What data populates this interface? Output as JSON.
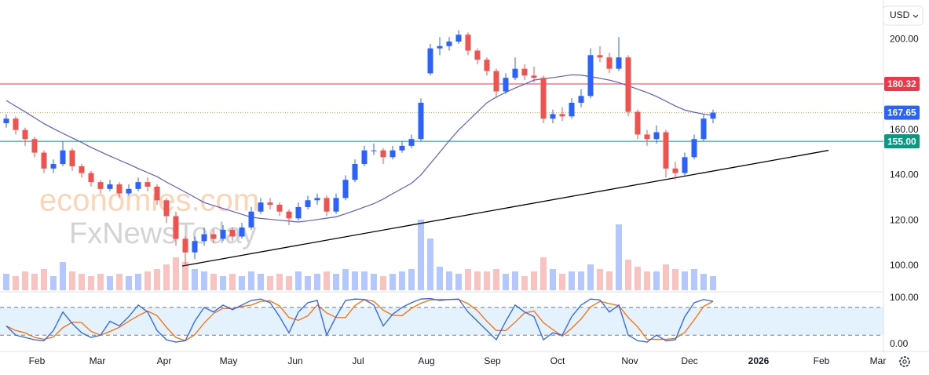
{
  "chart_data": {
    "type": "candlestick",
    "currency": "USD",
    "watermark": [
      "economies.com",
      "FxNewsToday"
    ],
    "x_labels": [
      "Feb",
      "Mar",
      "Apr",
      "May",
      "Jun",
      "Jul",
      "Aug",
      "Sep",
      "Oct",
      "Nov",
      "Dec",
      "2026",
      "Feb",
      "Mar"
    ],
    "ylim": [
      89.3,
      215.6
    ],
    "yticks": [
      {
        "value": 100,
        "label": "100.00"
      },
      {
        "value": 120,
        "label": "120.00"
      },
      {
        "value": 140,
        "label": "140.00"
      },
      {
        "value": 160,
        "label": "160.00"
      },
      {
        "value": 200,
        "label": "200.00"
      }
    ],
    "up_color": "#2962ff",
    "down_color": "#ef5350",
    "open": [
      163,
      165,
      160,
      156,
      150,
      143,
      145,
      151,
      144,
      141,
      137,
      134,
      136,
      132,
      134,
      137,
      135,
      129,
      122,
      112,
      106,
      111,
      114,
      112,
      116,
      113,
      117,
      124,
      128,
      127,
      124,
      121,
      126,
      129,
      130,
      124,
      130,
      138,
      145,
      151,
      151,
      148,
      151,
      153,
      156,
      185,
      196,
      197,
      199,
      202,
      195,
      191,
      186,
      177,
      183,
      187,
      184,
      183,
      165,
      167,
      166,
      172,
      175,
      193,
      192,
      187,
      192,
      168,
      158,
      156,
      159,
      143,
      141,
      148,
      156,
      165
    ],
    "high": [
      167,
      166,
      161,
      157,
      151,
      147,
      155,
      152,
      145,
      142,
      138,
      138,
      137,
      136,
      139,
      139,
      136,
      130,
      124,
      113,
      113,
      117,
      116,
      118,
      117,
      119,
      126,
      130,
      130,
      128,
      125,
      128,
      131,
      132,
      131,
      132,
      140,
      147,
      153,
      154,
      152,
      153,
      155,
      158,
      174,
      198,
      201,
      201,
      204,
      203,
      196,
      192,
      187,
      185,
      192,
      189,
      188,
      184,
      169,
      170,
      174,
      178,
      196,
      197,
      194,
      201,
      193,
      169,
      160,
      162,
      160,
      146,
      150,
      158,
      167,
      169
    ],
    "low": [
      161,
      158,
      153,
      148,
      141,
      141,
      144,
      142,
      139,
      135,
      132,
      133,
      130,
      131,
      133,
      133,
      127,
      119,
      109,
      100,
      103,
      109,
      110,
      111,
      111,
      112,
      116,
      123,
      125,
      122,
      118,
      120,
      125,
      127,
      122,
      123,
      129,
      137,
      144,
      149,
      145,
      147,
      150,
      152,
      155,
      184,
      193,
      195,
      198,
      193,
      189,
      184,
      174,
      176,
      182,
      182,
      181,
      163,
      163,
      164,
      165,
      170,
      174,
      190,
      185,
      186,
      166,
      156,
      153,
      154,
      139,
      138,
      140,
      147,
      155,
      163
    ],
    "close": [
      165,
      160,
      156,
      150,
      143,
      145,
      151,
      144,
      141,
      137,
      134,
      136,
      132,
      134,
      137,
      135,
      129,
      122,
      112,
      106,
      111,
      114,
      112,
      116,
      113,
      117,
      124,
      128,
      127,
      124,
      121,
      126,
      129,
      130,
      124,
      130,
      138,
      145,
      151,
      151,
      148,
      151,
      153,
      156,
      172,
      196,
      197,
      199,
      202,
      195,
      191,
      186,
      177,
      183,
      187,
      184,
      183,
      165,
      167,
      166,
      172,
      175,
      193,
      192,
      187,
      192,
      168,
      158,
      156,
      159,
      143,
      141,
      148,
      156,
      165,
      167.65
    ],
    "volume": [
      7,
      6,
      8,
      7,
      9,
      6,
      12,
      8,
      7,
      6,
      7,
      6,
      7,
      6,
      7,
      8,
      9,
      11,
      14,
      12,
      9,
      8,
      7,
      6,
      7,
      6,
      8,
      7,
      6,
      7,
      6,
      8,
      6,
      7,
      8,
      7,
      9,
      8,
      8,
      7,
      6,
      7,
      8,
      9,
      30,
      22,
      10,
      8,
      7,
      9,
      8,
      8,
      9,
      7,
      8,
      6,
      8,
      14,
      9,
      7,
      8,
      8,
      11,
      9,
      8,
      28,
      13,
      10,
      8,
      8,
      11,
      9,
      8,
      9,
      7,
      6
    ],
    "ma": {
      "color": "#5b5bd6",
      "values": [
        173,
        170.5,
        168,
        165.4,
        162.8,
        160.6,
        158.5,
        156.5,
        154.5,
        152.3,
        150.4,
        148.5,
        146.7,
        144.9,
        143,
        141.2,
        139.4,
        137,
        134.8,
        132.6,
        130.3,
        128,
        126.7,
        125.4,
        124.1,
        122.8,
        121.5,
        121,
        120.6,
        120.2,
        119.8,
        119.4,
        119.9,
        120.5,
        121.1,
        121.7,
        123,
        124.5,
        126,
        127.5,
        129.5,
        131.9,
        134.2,
        136.5,
        140.2,
        145.2,
        150.2,
        155.2,
        160,
        164,
        168,
        172,
        174.5,
        176.6,
        178.5,
        180.2,
        182,
        182.6,
        183.1,
        183.7,
        184.3,
        184.2,
        183.5,
        182.8,
        182,
        180.9,
        179.5,
        178,
        176.5,
        174.8,
        172.7,
        170.6,
        168.8,
        167.8,
        167,
        166.4
      ]
    },
    "levels": [
      {
        "value": 180.32,
        "label": "180.32",
        "color": "#f23645",
        "style": "solid"
      },
      {
        "value": 167.65,
        "label": "167.65",
        "color": "#2962ff",
        "line_color": "#ff9800",
        "style": "dotted"
      },
      {
        "value": 155,
        "label": "155.00",
        "color": "#089981",
        "style": "solid"
      }
    ],
    "trendline": {
      "points": [
        [
          18.67,
          100
        ],
        [
          87.25,
          151
        ]
      ],
      "color": "#000000"
    },
    "stochastic": {
      "ylim": [
        0,
        100
      ],
      "yticks": [
        {
          "value": 100,
          "label": "100.00"
        },
        {
          "value": 0,
          "label": "0.00"
        }
      ],
      "levels": [
        20,
        80
      ],
      "k": {
        "color": "#2962ff",
        "values": [
          40,
          20,
          15,
          10,
          8,
          30,
          70,
          45,
          25,
          15,
          20,
          50,
          40,
          60,
          85,
          70,
          30,
          10,
          5,
          8,
          50,
          80,
          70,
          85,
          75,
          85,
          95,
          98,
          90,
          60,
          25,
          70,
          90,
          95,
          20,
          60,
          95,
          98,
          97,
          85,
          40,
          65,
          80,
          90,
          98,
          99,
          95,
          97,
          98,
          70,
          50,
          30,
          10,
          50,
          85,
          70,
          60,
          10,
          25,
          20,
          60,
          85,
          98,
          96,
          70,
          85,
          20,
          8,
          5,
          20,
          8,
          10,
          60,
          90,
          97,
          93
        ]
      },
      "d": {
        "color": "#ff6d00",
        "values": [
          40,
          30,
          25,
          15,
          11,
          16,
          36,
          48,
          47,
          28,
          20,
          28,
          37,
          50,
          62,
          72,
          62,
          37,
          15,
          8,
          21,
          46,
          67,
          78,
          77,
          82,
          85,
          93,
          94,
          83,
          58,
          52,
          62,
          85,
          68,
          58,
          58,
          84,
          97,
          93,
          74,
          63,
          62,
          78,
          89,
          96,
          97,
          97,
          97,
          88,
          73,
          50,
          30,
          30,
          48,
          68,
          72,
          47,
          32,
          18,
          35,
          55,
          81,
          93,
          88,
          84,
          58,
          38,
          11,
          11,
          11,
          13,
          26,
          53,
          82,
          93
        ]
      }
    }
  }
}
